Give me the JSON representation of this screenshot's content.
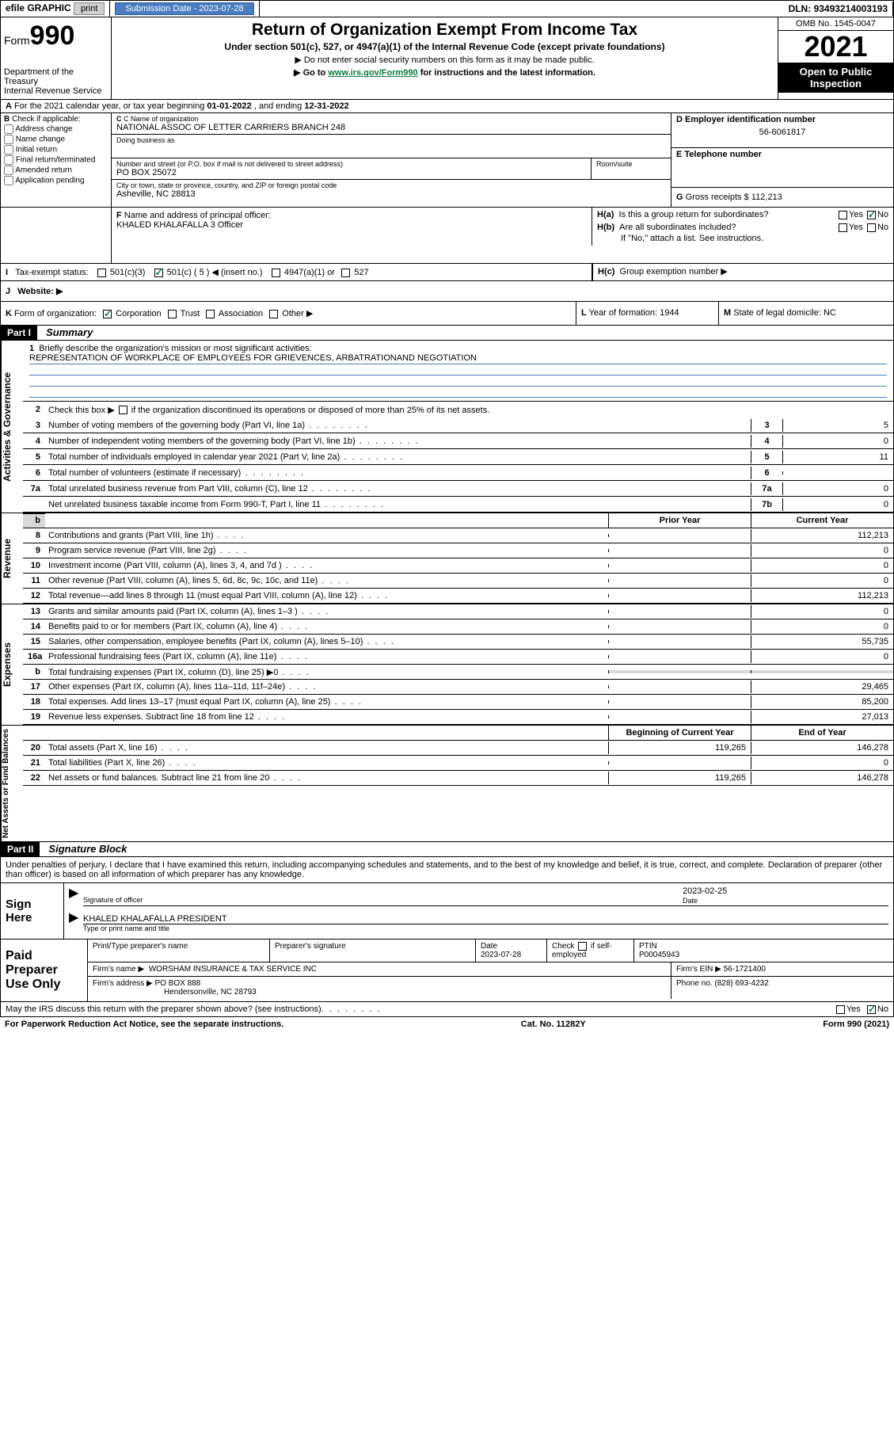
{
  "topbar": {
    "efile_label": "efile GRAPHIC",
    "print_btn": "print",
    "submission_label": "Submission Date - ",
    "submission_date": "2023-07-28",
    "dln_label": "DLN: ",
    "dln": "93493214003193"
  },
  "header": {
    "form_word": "Form",
    "form_number": "990",
    "dept": "Department of the Treasury",
    "irs": "Internal Revenue Service",
    "title": "Return of Organization Exempt From Income Tax",
    "subtitle": "Under section 501(c), 527, or 4947(a)(1) of the Internal Revenue Code (except private foundations)",
    "note1": "▶ Do not enter social security numbers on this form as it may be made public.",
    "note2_pre": "▶ Go to ",
    "note2_link": "www.irs.gov/Form990",
    "note2_post": " for instructions and the latest information.",
    "omb": "OMB No. 1545-0047",
    "year": "2021",
    "open_public": "Open to Public Inspection"
  },
  "section_a": {
    "label": "A",
    "text": " For the 2021 calendar year, or tax year beginning ",
    "begin": "01-01-2022",
    "mid": " , and ending ",
    "end": "12-31-2022"
  },
  "col_b": {
    "label": "B",
    "check_label": " Check if applicable:",
    "addr_change": "Address change",
    "name_change": "Name change",
    "initial": "Initial return",
    "final": "Final return/terminated",
    "amended": "Amended return",
    "app_pending": "Application pending"
  },
  "col_c": {
    "name_label": "C Name of organization",
    "name": "NATIONAL ASSOC OF LETTER CARRIERS BRANCH 248",
    "dba_label": "Doing business as",
    "street_label": "Number and street (or P.O. box if mail is not delivered to street address)",
    "street": "PO BOX 25072",
    "room_label": "Room/suite",
    "city_label": "City or town, state or province, country, and ZIP or foreign postal code",
    "city": "Asheville, NC  28813"
  },
  "col_d": {
    "label": "D Employer identification number",
    "ein": "56-6061817"
  },
  "col_e": {
    "label": "E Telephone number"
  },
  "col_g": {
    "label": "G",
    "text": " Gross receipts $ ",
    "val": "112,213"
  },
  "col_f": {
    "label": "F",
    "text": " Name and address of principal officer:",
    "name": "KHALED KHALAFALLA 3 Officer"
  },
  "col_h": {
    "ha_label": "H(a)",
    "ha_text": "Is this a group return for subordinates?",
    "hb_label": "H(b)",
    "hb_text": "Are all subordinates included?",
    "hb_note": "If \"No,\" attach a list. See instructions.",
    "hc_label": "H(c)",
    "hc_text": "Group exemption number ▶",
    "yes": "Yes",
    "no": "No"
  },
  "col_i": {
    "label": "I",
    "text": "Tax-exempt status:",
    "c3": "501(c)(3)",
    "c": "501(c) ( 5 ) ◀ (insert no.)",
    "a1": "4947(a)(1) or",
    "527": "527"
  },
  "col_j": {
    "label": "J",
    "text": "Website: ▶"
  },
  "col_k": {
    "label": "K",
    "text": " Form of organization:",
    "corp": "Corporation",
    "trust": "Trust",
    "assoc": "Association",
    "other": "Other ▶"
  },
  "col_l": {
    "label": "L",
    "text": " Year of formation: ",
    "val": "1944"
  },
  "col_m": {
    "label": "M",
    "text": " State of legal domicile: ",
    "val": "NC"
  },
  "part1": {
    "hdr": "Part I",
    "title": "Summary"
  },
  "summary": {
    "line1_num": "1",
    "line1_label": "Briefly describe the organization's mission or most significant activities:",
    "mission": "REPRESENTATION OF WORKPLACE OF EMPLOYEES FOR GRIEVENCES, ARBATRATIONAND NEGOTIATION",
    "line2_num": "2",
    "line2": "Check this box ▶",
    "line2_post": " if the organization discontinued its operations or disposed of more than 25% of its net assets.",
    "rows_gov": [
      {
        "n": "3",
        "desc": "Number of voting members of the governing body (Part VI, line 1a)",
        "box": "3",
        "val": "5"
      },
      {
        "n": "4",
        "desc": "Number of independent voting members of the governing body (Part VI, line 1b)",
        "box": "4",
        "val": "0"
      },
      {
        "n": "5",
        "desc": "Total number of individuals employed in calendar year 2021 (Part V, line 2a)",
        "box": "5",
        "val": "11"
      },
      {
        "n": "6",
        "desc": "Total number of volunteers (estimate if necessary)",
        "box": "6",
        "val": ""
      },
      {
        "n": "7a",
        "desc": "Total unrelated business revenue from Part VIII, column (C), line 12",
        "box": "7a",
        "val": "0"
      },
      {
        "n": "",
        "desc": "Net unrelated business taxable income from Form 990-T, Part I, line 11",
        "box": "7b",
        "val": "0"
      }
    ],
    "prior_hdr": "Prior Year",
    "current_hdr": "Current Year",
    "rows_rev": [
      {
        "n": "8",
        "desc": "Contributions and grants (Part VIII, line 1h)",
        "prior": "",
        "cur": "112,213"
      },
      {
        "n": "9",
        "desc": "Program service revenue (Part VIII, line 2g)",
        "prior": "",
        "cur": "0"
      },
      {
        "n": "10",
        "desc": "Investment income (Part VIII, column (A), lines 3, 4, and 7d )",
        "prior": "",
        "cur": "0"
      },
      {
        "n": "11",
        "desc": "Other revenue (Part VIII, column (A), lines 5, 6d, 8c, 9c, 10c, and 11e)",
        "prior": "",
        "cur": "0"
      },
      {
        "n": "12",
        "desc": "Total revenue—add lines 8 through 11 (must equal Part VIII, column (A), line 12)",
        "prior": "",
        "cur": "112,213"
      }
    ],
    "rows_exp": [
      {
        "n": "13",
        "desc": "Grants and similar amounts paid (Part IX, column (A), lines 1–3 )",
        "prior": "",
        "cur": "0"
      },
      {
        "n": "14",
        "desc": "Benefits paid to or for members (Part IX, column (A), line 4)",
        "prior": "",
        "cur": "0"
      },
      {
        "n": "15",
        "desc": "Salaries, other compensation, employee benefits (Part IX, column (A), lines 5–10)",
        "prior": "",
        "cur": "55,735"
      },
      {
        "n": "16a",
        "desc": "Professional fundraising fees (Part IX, column (A), line 11e)",
        "prior": "",
        "cur": "0"
      },
      {
        "n": "b",
        "desc": "Total fundraising expenses (Part IX, column (D), line 25) ▶0",
        "prior": "shaded",
        "cur": "shaded"
      },
      {
        "n": "17",
        "desc": "Other expenses (Part IX, column (A), lines 11a–11d, 11f–24e)",
        "prior": "",
        "cur": "29,465"
      },
      {
        "n": "18",
        "desc": "Total expenses. Add lines 13–17 (must equal Part IX, column (A), line 25)",
        "prior": "",
        "cur": "85,200"
      },
      {
        "n": "19",
        "desc": "Revenue less expenses. Subtract line 18 from line 12",
        "prior": "",
        "cur": "27,013"
      }
    ],
    "begin_hdr": "Beginning of Current Year",
    "end_hdr": "End of Year",
    "rows_net": [
      {
        "n": "20",
        "desc": "Total assets (Part X, line 16)",
        "prior": "119,265",
        "cur": "146,278"
      },
      {
        "n": "21",
        "desc": "Total liabilities (Part X, line 26)",
        "prior": "",
        "cur": "0"
      },
      {
        "n": "22",
        "desc": "Net assets or fund balances. Subtract line 21 from line 20",
        "prior": "119,265",
        "cur": "146,278"
      }
    ],
    "vert_gov": "Activities & Governance",
    "vert_rev": "Revenue",
    "vert_exp": "Expenses",
    "vert_net": "Net Assets or Fund Balances"
  },
  "part2": {
    "hdr": "Part II",
    "title": "Signature Block",
    "penalty": "Under penalties of perjury, I declare that I have examined this return, including accompanying schedules and statements, and to the best of my knowledge and belief, it is true, correct, and complete. Declaration of preparer (other than officer) is based on all information of which preparer has any knowledge."
  },
  "sign": {
    "here": "Sign Here",
    "sig_officer": "Signature of officer",
    "date_label": "Date",
    "date": "2023-02-25",
    "name": "KHALED KHALAFALLA  PRESIDENT",
    "name_label": "Type or print name and title"
  },
  "prep": {
    "label": "Paid Preparer Use Only",
    "print_name_label": "Print/Type preparer's name",
    "sig_label": "Preparer's signature",
    "date_label": "Date",
    "date": "2023-07-28",
    "check_label": "Check",
    "self_emp": "if self-employed",
    "ptin_label": "PTIN",
    "ptin": "P00045943",
    "firm_name_label": "Firm's name    ▶",
    "firm_name": "WORSHAM INSURANCE & TAX SERVICE INC",
    "firm_ein_label": "Firm's EIN ▶",
    "firm_ein": "56-1721400",
    "firm_addr_label": "Firm's address ▶",
    "firm_addr1": "PO BOX 888",
    "firm_addr2": "Hendersonville, NC  28793",
    "phone_label": "Phone no. ",
    "phone": "(828) 693-4232"
  },
  "footer": {
    "discuss": "May the IRS discuss this return with the preparer shown above? (see instructions)",
    "yes": "Yes",
    "no": "No",
    "paperwork": "For Paperwork Reduction Act Notice, see the separate instructions.",
    "cat": "Cat. No. 11282Y",
    "form": "Form 990 (2021)"
  }
}
